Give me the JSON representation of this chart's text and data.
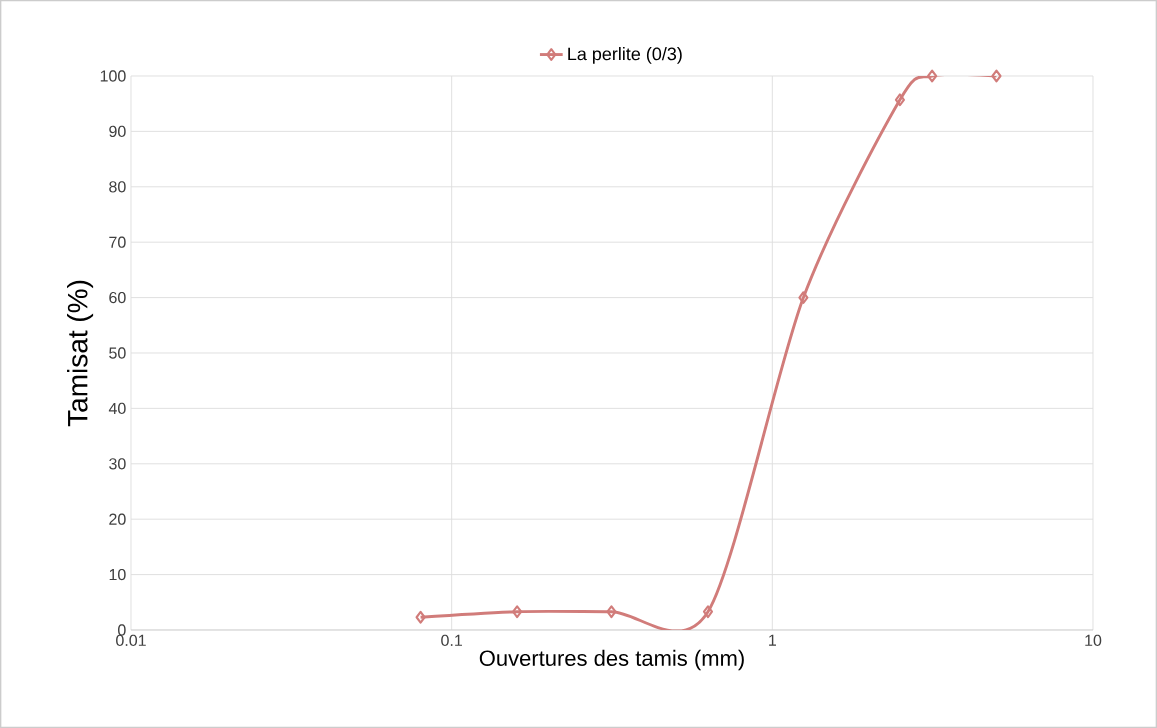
{
  "chart_data": {
    "type": "line",
    "xlabel": "Ouvertures des tamis (mm)",
    "ylabel": "Tamisat (%)",
    "x": [
      0.08,
      0.16,
      0.315,
      0.63,
      1.25,
      2.5,
      3.15,
      5
    ],
    "series": [
      {
        "name": "La perlite (0/3)",
        "color": "#d17c7a",
        "values": [
          2.3,
          3.3,
          3.3,
          3.3,
          60,
          95.7,
          100,
          100
        ]
      }
    ],
    "xlim": [
      0.01,
      10
    ],
    "ylim": [
      0,
      100
    ],
    "xticks": [
      0.01,
      0.1,
      1,
      10
    ],
    "yticks": [
      0,
      10,
      20,
      30,
      40,
      50,
      60,
      70,
      80,
      90,
      100
    ],
    "log": "x",
    "grid": true,
    "legend": "top",
    "marker": "diamond",
    "line_style": "solid"
  }
}
